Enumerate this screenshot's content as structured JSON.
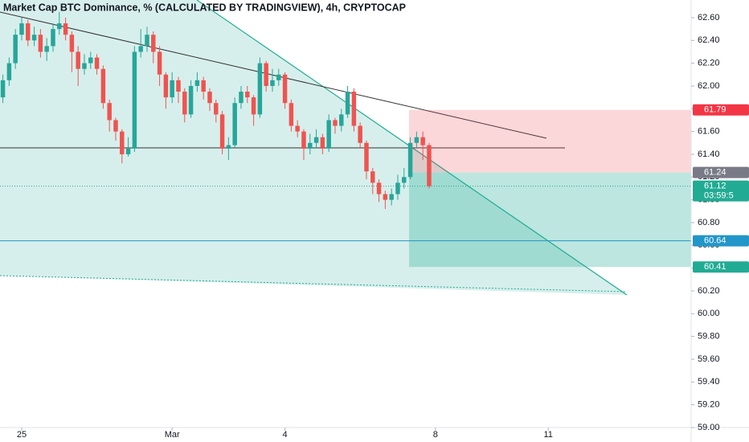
{
  "chart_data": {
    "type": "candlestick",
    "title": "Market Cap BTC Dominance, % (CALCULATED BY TRADINGVIEW), 4h, CRYPTOCAP",
    "up_color": "#26a69a",
    "down_color": "#ef5350",
    "xlim": [
      -0.46,
      109.8
    ],
    "xticks": [
      {
        "value": 3,
        "label": "25"
      },
      {
        "value": 27,
        "label": "Mar"
      },
      {
        "value": 45,
        "label": "4"
      },
      {
        "value": 69,
        "label": "8"
      },
      {
        "value": 87,
        "label": "11"
      }
    ],
    "ylim": [
      59.0,
      62.755
    ],
    "yticks": [
      {
        "value": 59.0,
        "label": "59.00"
      },
      {
        "value": 59.2,
        "label": "59.20"
      },
      {
        "value": 59.4,
        "label": "59.40"
      },
      {
        "value": 59.6,
        "label": "59.60"
      },
      {
        "value": 59.8,
        "label": "59.80"
      },
      {
        "value": 60.0,
        "label": "60.00"
      },
      {
        "value": 60.2,
        "label": "60.20"
      },
      {
        "value": 60.4,
        "label": "60.40"
      },
      {
        "value": 60.6,
        "label": "60.60"
      },
      {
        "value": 60.8,
        "label": "60.80"
      },
      {
        "value": 61.0,
        "label": "61.00"
      },
      {
        "value": 61.2,
        "label": "61.20"
      },
      {
        "value": 61.4,
        "label": "61.40"
      },
      {
        "value": 61.6,
        "label": "61.60"
      },
      {
        "value": 61.8,
        "label": "61.80"
      },
      {
        "value": 62.0,
        "label": "62.00"
      },
      {
        "value": 62.2,
        "label": "62.20"
      },
      {
        "value": 62.4,
        "label": "62.40"
      },
      {
        "value": 62.6,
        "label": "62.60"
      }
    ],
    "open": [
      61.9,
      62.05,
      62.2,
      62.45,
      62.55,
      62.4,
      62.45,
      62.3,
      62.35,
      62.5,
      62.55,
      62.45,
      62.3,
      62.15,
      62.2,
      62.25,
      62.15,
      61.85,
      61.7,
      61.6,
      61.4,
      61.45,
      62.3,
      62.35,
      62.45,
      62.3,
      62.1,
      61.9,
      62.05,
      61.95,
      61.75,
      62.0,
      62.05,
      61.95,
      61.85,
      61.75,
      61.45,
      61.48,
      61.85,
      61.95,
      61.9,
      61.75,
      62.2,
      62.0,
      62.05,
      62.1,
      61.85,
      61.65,
      61.6,
      61.45,
      61.5,
      61.55,
      61.45,
      61.7,
      61.65,
      61.75,
      61.95,
      61.65,
      61.5,
      61.25,
      61.15,
      61.05,
      61.0,
      61.05,
      61.15,
      61.2,
      61.5,
      61.55,
      61.48
    ],
    "high": [
      62.1,
      62.25,
      62.5,
      62.6,
      62.58,
      62.52,
      62.5,
      62.42,
      62.55,
      62.65,
      62.6,
      62.48,
      62.35,
      62.28,
      62.3,
      62.28,
      62.18,
      61.88,
      61.72,
      61.62,
      61.55,
      62.35,
      62.5,
      62.52,
      62.48,
      62.35,
      62.12,
      62.12,
      62.08,
      61.98,
      62.05,
      62.12,
      62.08,
      61.98,
      61.88,
      61.78,
      61.55,
      61.9,
      62.0,
      62.0,
      61.92,
      62.25,
      62.22,
      62.15,
      62.15,
      62.12,
      61.88,
      61.7,
      61.62,
      61.58,
      61.62,
      61.58,
      61.75,
      61.72,
      61.8,
      62.0,
      61.98,
      61.68,
      61.52,
      61.28,
      61.18,
      61.08,
      61.1,
      61.22,
      61.28,
      61.55,
      61.6,
      61.6,
      61.5
    ],
    "low": [
      61.85,
      62.0,
      62.15,
      62.4,
      62.35,
      62.35,
      62.25,
      62.22,
      62.3,
      62.45,
      62.4,
      62.12,
      62.0,
      62.1,
      62.15,
      62.1,
      61.8,
      61.6,
      61.52,
      61.32,
      61.38,
      61.42,
      62.25,
      62.3,
      62.2,
      62.0,
      61.8,
      61.85,
      61.85,
      61.68,
      61.72,
      61.95,
      61.88,
      61.78,
      61.68,
      61.4,
      61.35,
      61.45,
      61.8,
      61.85,
      61.65,
      61.72,
      61.95,
      61.95,
      62.0,
      61.8,
      61.6,
      61.55,
      61.35,
      61.4,
      61.45,
      61.4,
      61.42,
      61.58,
      61.6,
      61.72,
      61.6,
      61.45,
      61.18,
      61.05,
      60.98,
      60.92,
      60.95,
      61.0,
      61.1,
      61.18,
      61.45,
      61.35,
      61.1
    ],
    "close": [
      62.05,
      62.2,
      62.45,
      62.55,
      62.4,
      62.45,
      62.3,
      62.35,
      62.5,
      62.55,
      62.45,
      62.3,
      62.15,
      62.2,
      62.25,
      62.15,
      61.85,
      61.7,
      61.6,
      61.4,
      61.45,
      62.3,
      62.35,
      62.45,
      62.3,
      62.1,
      61.9,
      62.05,
      61.95,
      61.75,
      62.0,
      62.05,
      61.95,
      61.85,
      61.75,
      61.45,
      61.48,
      61.85,
      61.95,
      61.9,
      61.75,
      62.2,
      62.0,
      62.05,
      62.1,
      61.85,
      61.65,
      61.6,
      61.45,
      61.5,
      61.55,
      61.45,
      61.7,
      61.65,
      61.75,
      61.95,
      61.65,
      61.5,
      61.25,
      61.15,
      61.05,
      61.0,
      61.05,
      61.15,
      61.2,
      61.5,
      61.55,
      61.48,
      61.12
    ],
    "price_tags": [
      {
        "value": 61.79,
        "label": "61.79",
        "color": "#f23645"
      },
      {
        "value": 61.24,
        "label": "61.24",
        "color": "#787b86"
      },
      {
        "value": 61.12,
        "label": "61.12",
        "countdown": "03:59:5",
        "color": "#22ab94"
      },
      {
        "value": 60.64,
        "label": "60.64",
        "color": "#2196c8"
      },
      {
        "value": 60.41,
        "label": "60.41",
        "color": "#22ab94"
      }
    ]
  }
}
